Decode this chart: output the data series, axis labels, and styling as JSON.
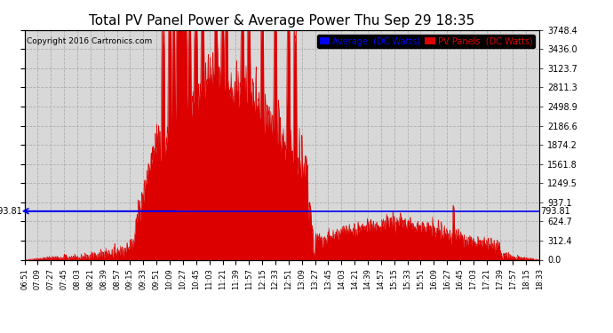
{
  "title": "Total PV Panel Power & Average Power Thu Sep 29 18:35",
  "copyright": "Copyright 2016 Cartronics.com",
  "legend_items": [
    {
      "label": "Average  (DC Watts)",
      "facecolor": "#0000ee",
      "textcolor": "#0000ee"
    },
    {
      "label": "PV Panels  (DC Watts)",
      "facecolor": "#dd0000",
      "textcolor": "#dd0000"
    }
  ],
  "yticks": [
    0.0,
    312.4,
    624.7,
    937.1,
    1249.5,
    1561.8,
    1874.2,
    2186.6,
    2498.9,
    2811.3,
    3123.7,
    3436.0,
    3748.4
  ],
  "average_line_y": 793.81,
  "average_label": "793.81",
  "ymax": 3748.4,
  "bg_color": "#ffffff",
  "plot_bg_color": "#d8d8d8",
  "grid_color": "#aaaaaa",
  "fill_color": "#dd0000",
  "avg_line_color": "#0000ee",
  "title_fontsize": 11,
  "tick_fontsize": 7,
  "xtick_labels": [
    "06:51",
    "07:09",
    "07:27",
    "07:45",
    "08:03",
    "08:21",
    "08:39",
    "08:57",
    "09:15",
    "09:33",
    "09:51",
    "10:09",
    "10:27",
    "10:45",
    "11:03",
    "11:21",
    "11:39",
    "11:57",
    "12:15",
    "12:33",
    "12:51",
    "13:09",
    "13:27",
    "13:45",
    "14:03",
    "14:21",
    "14:39",
    "14:57",
    "15:15",
    "15:33",
    "15:51",
    "16:09",
    "16:27",
    "16:45",
    "17:03",
    "17:21",
    "17:39",
    "17:57",
    "18:15",
    "18:33"
  ]
}
